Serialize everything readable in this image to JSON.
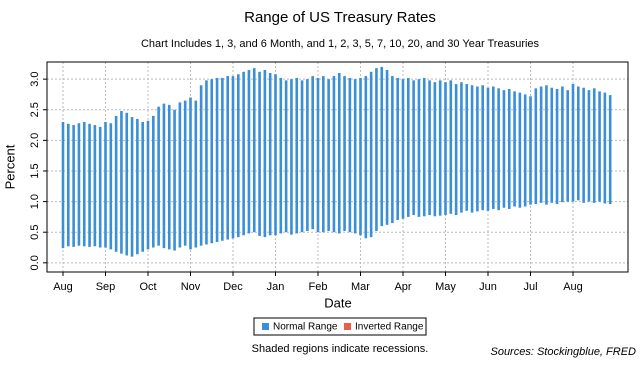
{
  "chart_data": {
    "type": "range",
    "title": "Range of US Treasury Rates",
    "subtitle": "Chart Includes 1, 3, and 6 Month, and 1, 2, 3, 5, 7, 10, 20, and 30 Year Treasuries",
    "x_label": "Date",
    "y_label": "Percent",
    "categories": [
      "Aug",
      null,
      null,
      null,
      null,
      null,
      null,
      null,
      "Sep",
      null,
      null,
      null,
      null,
      null,
      null,
      null,
      "Oct",
      null,
      null,
      null,
      null,
      null,
      null,
      null,
      "Nov",
      null,
      null,
      null,
      null,
      null,
      null,
      null,
      "Dec",
      null,
      null,
      null,
      null,
      null,
      null,
      null,
      "Jan",
      null,
      null,
      null,
      null,
      null,
      null,
      null,
      "Feb",
      null,
      null,
      null,
      null,
      null,
      null,
      null,
      "Mar",
      null,
      null,
      null,
      null,
      null,
      null,
      null,
      "Apr",
      null,
      null,
      null,
      null,
      null,
      null,
      null,
      "May",
      null,
      null,
      null,
      null,
      null,
      null,
      null,
      "Jun",
      null,
      null,
      null,
      null,
      null,
      null,
      null,
      "Jul",
      null,
      null,
      null,
      null,
      null,
      null,
      null,
      "Aug",
      null,
      null,
      null,
      null,
      null,
      null,
      null
    ],
    "series": [
      {
        "name": "Normal Range",
        "color": "#3a8fd8",
        "low": [
          0.24,
          0.27,
          0.26,
          0.28,
          0.27,
          0.26,
          0.27,
          0.25,
          0.25,
          0.22,
          0.18,
          0.15,
          0.12,
          0.1,
          0.14,
          0.18,
          0.22,
          0.25,
          0.28,
          0.24,
          0.22,
          0.2,
          0.25,
          0.28,
          0.22,
          0.25,
          0.28,
          0.3,
          0.32,
          0.34,
          0.36,
          0.38,
          0.4,
          0.42,
          0.45,
          0.48,
          0.5,
          0.44,
          0.42,
          0.45,
          0.45,
          0.48,
          0.5,
          0.46,
          0.48,
          0.5,
          0.52,
          0.55,
          0.5,
          0.5,
          0.52,
          0.5,
          0.48,
          0.52,
          0.5,
          0.48,
          0.45,
          0.4,
          0.42,
          0.52,
          0.6,
          0.62,
          0.65,
          0.7,
          0.72,
          0.75,
          0.78,
          0.75,
          0.76,
          0.78,
          0.76,
          0.77,
          0.78,
          0.8,
          0.78,
          0.82,
          0.85,
          0.82,
          0.84,
          0.86,
          0.85,
          0.88,
          0.86,
          0.9,
          0.88,
          0.92,
          0.9,
          0.92,
          0.95,
          0.96,
          0.98,
          0.95,
          0.98,
          0.96,
          0.99,
          1.0,
          1.0,
          1.02,
          0.98,
          1.0,
          0.98,
          1.0,
          0.97,
          0.96
        ],
        "high": [
          2.3,
          2.27,
          2.25,
          2.28,
          2.3,
          2.27,
          2.25,
          2.22,
          2.3,
          2.28,
          2.4,
          2.48,
          2.45,
          2.38,
          2.35,
          2.3,
          2.32,
          2.4,
          2.55,
          2.6,
          2.58,
          2.5,
          2.62,
          2.65,
          2.7,
          2.65,
          2.9,
          2.98,
          3.0,
          3.02,
          3.02,
          3.05,
          3.05,
          3.08,
          3.12,
          3.15,
          3.18,
          3.12,
          3.15,
          3.1,
          3.08,
          3.02,
          2.98,
          3.0,
          3.02,
          2.98,
          3.0,
          3.05,
          3.02,
          3.05,
          3.0,
          3.05,
          3.1,
          3.05,
          3.02,
          3.0,
          3.02,
          3.05,
          3.12,
          3.18,
          3.2,
          3.15,
          3.05,
          3.02,
          3.0,
          3.02,
          2.98,
          3.0,
          3.02,
          2.98,
          2.95,
          2.98,
          2.95,
          2.98,
          2.92,
          2.95,
          2.92,
          2.9,
          2.88,
          2.9,
          2.86,
          2.88,
          2.85,
          2.82,
          2.84,
          2.8,
          2.78,
          2.75,
          2.72,
          2.85,
          2.88,
          2.9,
          2.86,
          2.84,
          2.88,
          2.82,
          2.92,
          2.88,
          2.86,
          2.82,
          2.85,
          2.8,
          2.78,
          2.74
        ]
      },
      {
        "name": "Inverted Range",
        "color": "#e8604c"
      }
    ],
    "ylim": [
      -0.15,
      3.28
    ],
    "yticks": [
      {
        "value": 0,
        "label": "0.0"
      },
      0.5,
      {
        "value": 1,
        "label": "1.0"
      },
      1.5,
      {
        "value": 2,
        "label": "2.0"
      },
      2.5,
      {
        "value": 3,
        "label": "3.0"
      }
    ],
    "grid": true,
    "legend": "bottom",
    "note": "Shaded regions indicate recessions.",
    "source": "Sources: Stockingblue, FRED"
  }
}
